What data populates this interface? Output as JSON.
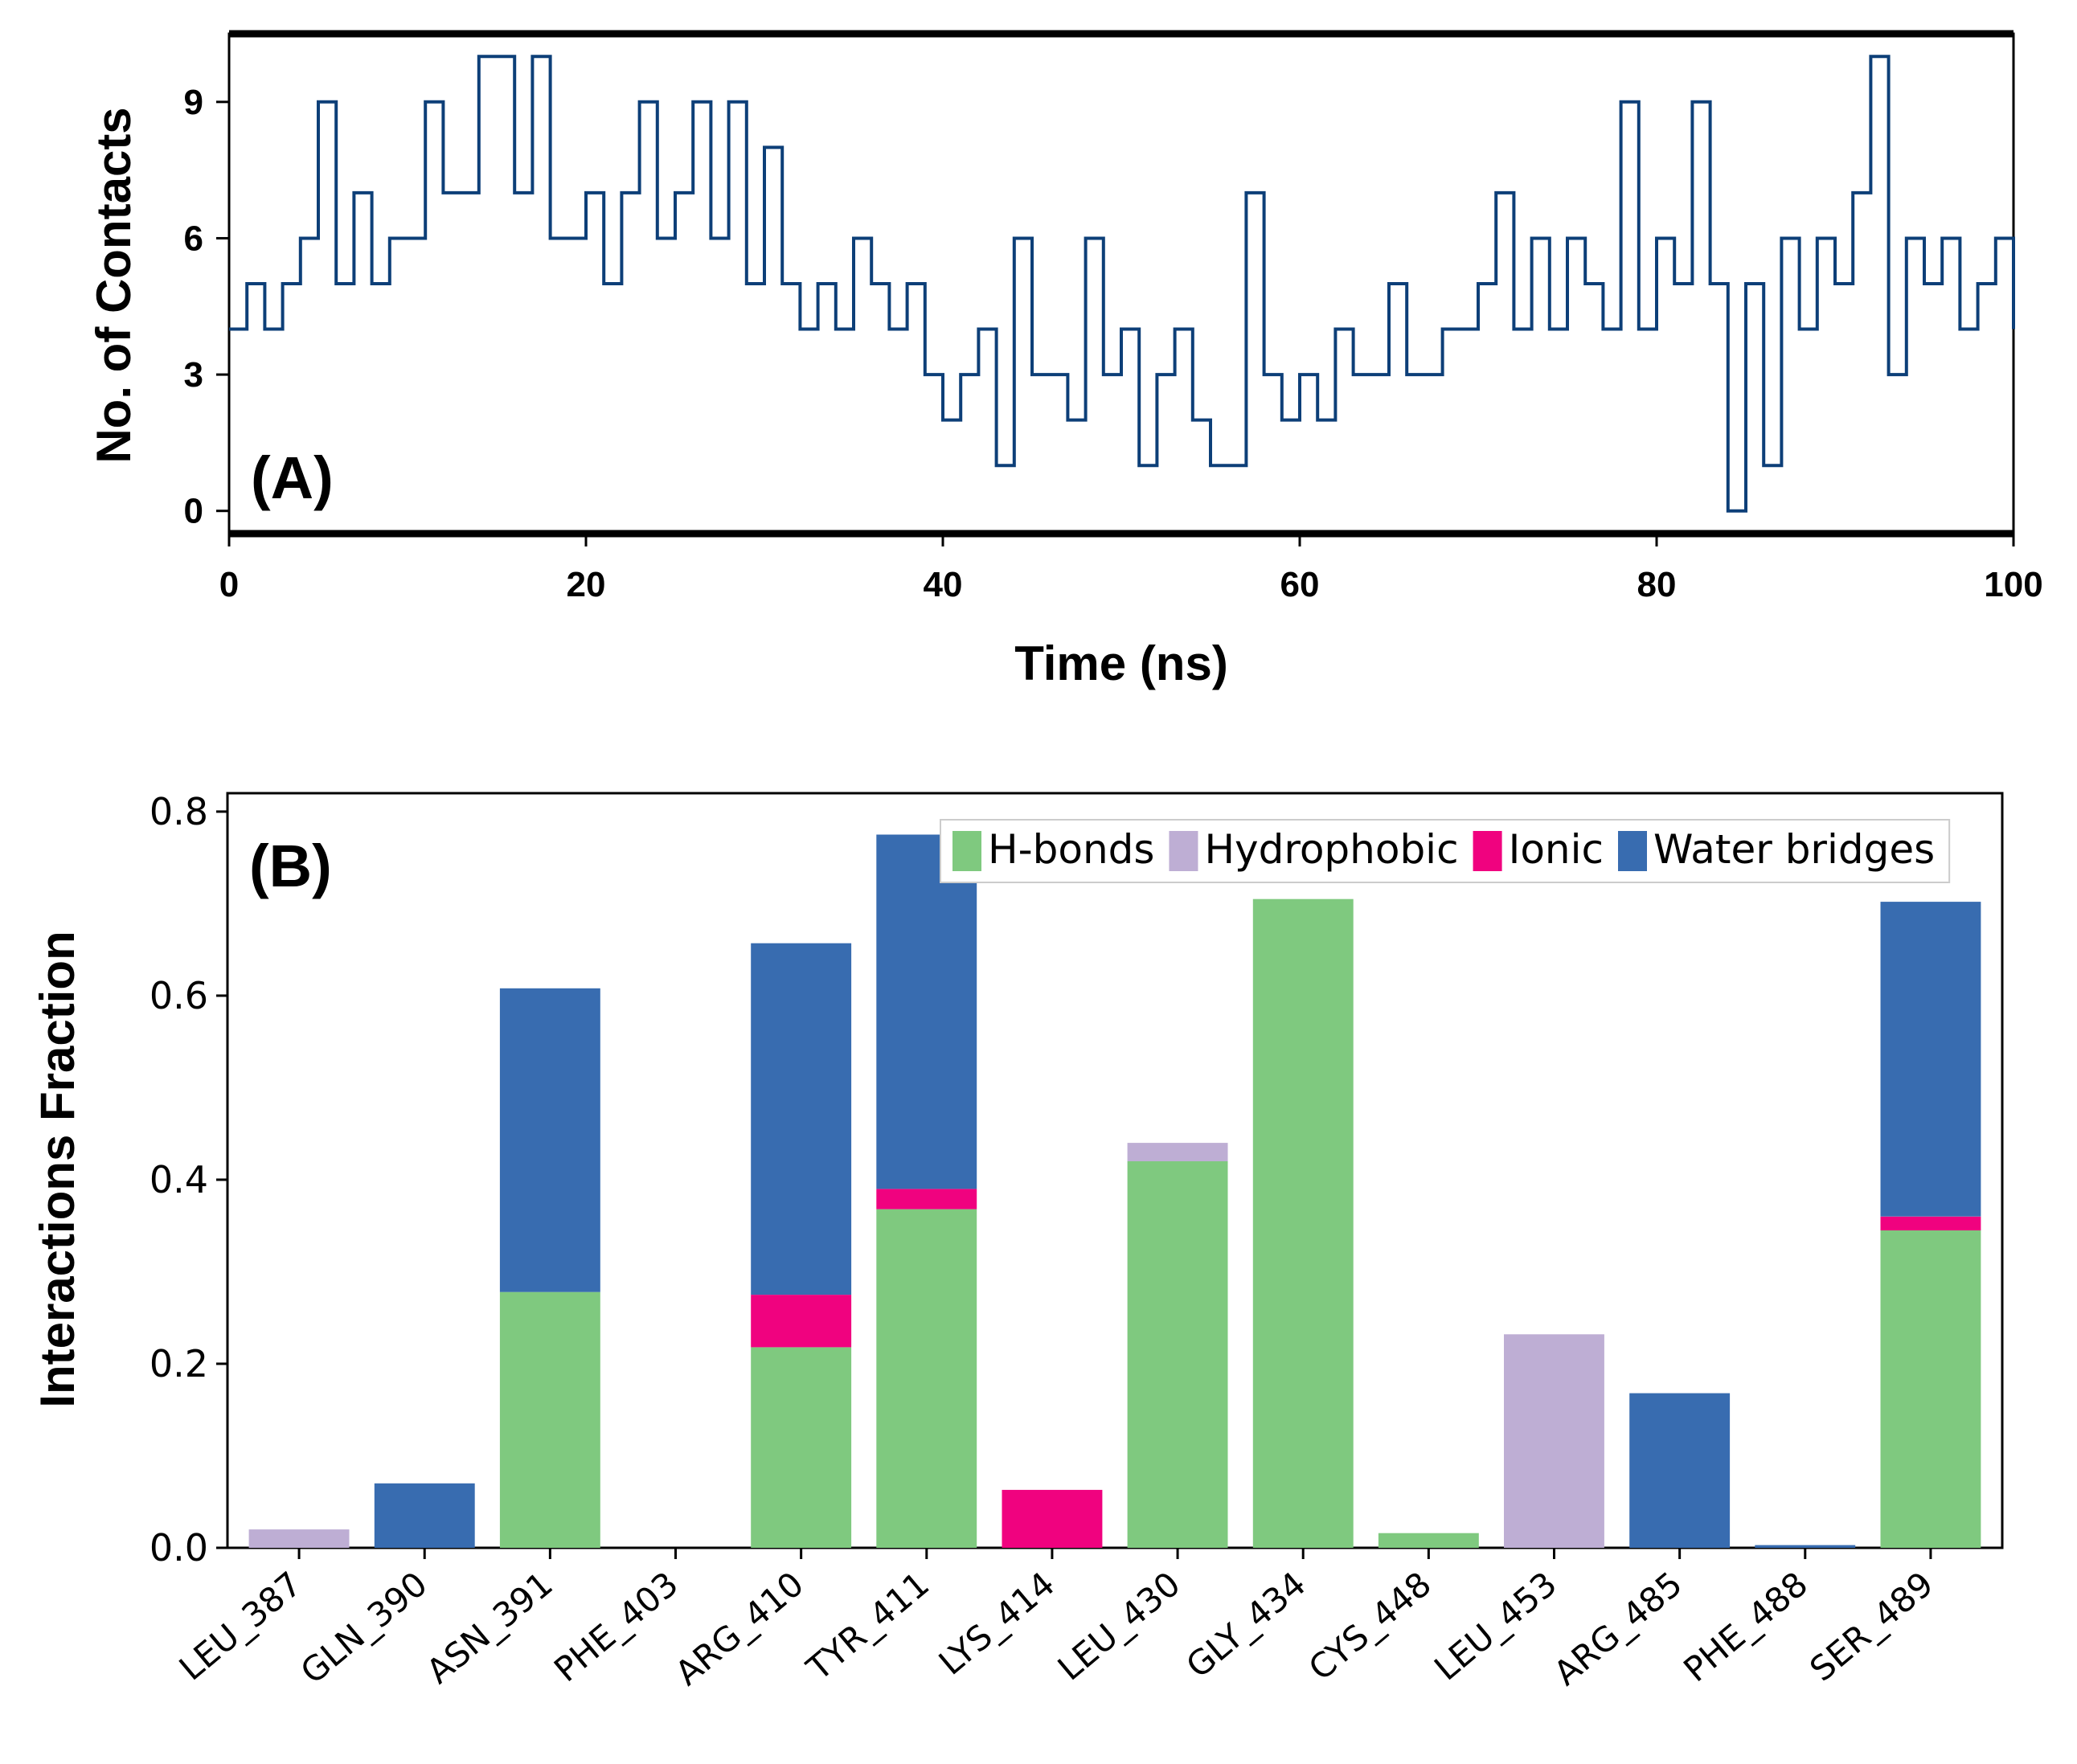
{
  "chart_data": [
    {
      "type": "line",
      "panel_label": "(A)",
      "xlabel": "Time (ns)",
      "ylabel": "No. of Contacts",
      "xlim": [
        0,
        100
      ],
      "ylim": [
        -0.5,
        10.5
      ],
      "xticks": [
        0,
        20,
        40,
        60,
        80,
        100
      ],
      "yticks": [
        0,
        3,
        6,
        9
      ],
      "grid": false,
      "series": [
        {
          "color": "#0d3f78",
          "x": [
            0,
            1,
            2,
            3,
            4,
            5,
            6,
            7,
            8,
            9,
            10,
            11,
            12,
            13,
            14,
            15,
            16,
            17,
            18,
            19,
            20,
            21,
            22,
            23,
            24,
            25,
            26,
            27,
            28,
            29,
            30,
            31,
            32,
            33,
            34,
            35,
            36,
            37,
            38,
            39,
            40,
            41,
            42,
            43,
            44,
            45,
            46,
            47,
            48,
            49,
            50,
            51,
            52,
            53,
            54,
            55,
            56,
            57,
            58,
            59,
            60,
            61,
            62,
            63,
            64,
            65,
            66,
            67,
            68,
            69,
            70,
            71,
            72,
            73,
            74,
            75,
            76,
            77,
            78,
            79,
            80,
            81,
            82,
            83,
            84,
            85,
            86,
            87,
            88,
            89,
            90,
            91,
            92,
            93,
            94,
            95,
            96,
            97,
            98,
            99,
            100
          ],
          "y": [
            4,
            5,
            4,
            5,
            6,
            9,
            5,
            7,
            5,
            6,
            6,
            9,
            7,
            7,
            10,
            10,
            7,
            10,
            6,
            6,
            7,
            5,
            7,
            9,
            6,
            7,
            9,
            6,
            9,
            5,
            8,
            5,
            4,
            5,
            4,
            6,
            5,
            4,
            5,
            3,
            2,
            3,
            4,
            1,
            6,
            3,
            3,
            2,
            6,
            3,
            4,
            1,
            3,
            4,
            2,
            1,
            1,
            7,
            3,
            2,
            3,
            2,
            4,
            3,
            3,
            5,
            3,
            3,
            4,
            4,
            5,
            7,
            4,
            6,
            4,
            6,
            5,
            4,
            9,
            4,
            6,
            5,
            9,
            5,
            0,
            5,
            1,
            6,
            4,
            6,
            5,
            7,
            10,
            3,
            6,
            5,
            6,
            4,
            5,
            6,
            4
          ]
        }
      ]
    },
    {
      "type": "bar",
      "stacked": true,
      "panel_label": "(B)",
      "ylabel": "Interactions Fraction",
      "ylim": [
        0,
        0.82
      ],
      "yticks": [
        "0.0",
        "0.2",
        "0.4",
        "0.6",
        "0.8"
      ],
      "legend_position": "top-right",
      "grid": false,
      "categories": [
        "LEU_387",
        "GLN_390",
        "ASN_391",
        "PHE_403",
        "ARG_410",
        "TYR_411",
        "LYS_414",
        "LEU_430",
        "GLY_434",
        "CYS_448",
        "LEU_453",
        "ARG_485",
        "PHE_488",
        "SER_489"
      ],
      "series": [
        {
          "name": "H-bonds",
          "color": "#7fc97f",
          "values": [
            0,
            0,
            0.278,
            0,
            0.218,
            0.368,
            0,
            0.42,
            0.705,
            0.016,
            0,
            0,
            0,
            0.345
          ]
        },
        {
          "name": "Hydrophobic",
          "color": "#beaed4",
          "values": [
            0.02,
            0,
            0,
            0,
            0,
            0,
            0,
            0.02,
            0,
            0,
            0.232,
            0,
            0,
            0
          ]
        },
        {
          "name": "Ionic",
          "color": "#f0027f",
          "values": [
            0,
            0,
            0,
            0,
            0.057,
            0.022,
            0.063,
            0,
            0,
            0,
            0,
            0,
            0,
            0.015
          ]
        },
        {
          "name": "Water bridges",
          "color": "#386cb0",
          "values": [
            0,
            0.07,
            0.33,
            0,
            0.382,
            0.385,
            0,
            0,
            0,
            0,
            0,
            0.168,
            0.003,
            0.342
          ]
        }
      ]
    }
  ]
}
